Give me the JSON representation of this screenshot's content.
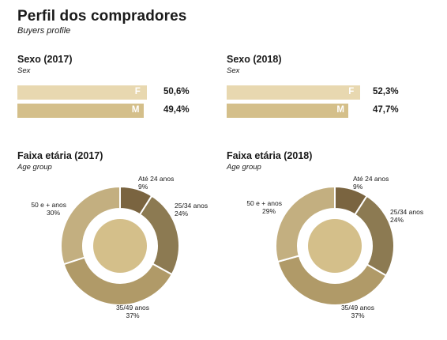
{
  "header": {
    "title": "Perfil dos compradores",
    "subtitle": "Buyers profile"
  },
  "colors": {
    "f_bar": "#e8d8b0",
    "m_bar": "#d4bf8a",
    "donut_inner": "#d4bf8a"
  },
  "chart_data": [
    {
      "type": "bar",
      "title": "Sexo (2017)",
      "subtitle": "Sex",
      "categories": [
        "F",
        "M"
      ],
      "values": [
        50.6,
        49.4
      ],
      "value_labels": [
        "50,6%",
        "49,4%"
      ],
      "unit": "%"
    },
    {
      "type": "bar",
      "title": "Sexo (2018)",
      "subtitle": "Sex",
      "categories": [
        "F",
        "M"
      ],
      "values": [
        52.3,
        47.7
      ],
      "value_labels": [
        "52,3%",
        "47,7%"
      ],
      "unit": "%"
    },
    {
      "type": "pie",
      "title": "Faixa etária (2017)",
      "subtitle": "Age group",
      "categories": [
        "Até 24 anos",
        "25/34 anos",
        "35/49 anos",
        "50 e + anos"
      ],
      "values": [
        9,
        24,
        37,
        30
      ],
      "value_labels": [
        "9%",
        "24%",
        "37%",
        "30%"
      ],
      "colors": [
        "#7a6440",
        "#8c7a52",
        "#b09a68",
        "#c3af80"
      ]
    },
    {
      "type": "pie",
      "title": "Faixa etária (2018)",
      "subtitle": "Age group",
      "categories": [
        "Até 24 anos",
        "25/34 anos",
        "35/49 anos",
        "50 e + anos"
      ],
      "values": [
        9,
        24,
        37,
        29
      ],
      "value_labels": [
        "9%",
        "24%",
        "37%",
        "29%"
      ],
      "colors": [
        "#7a6440",
        "#8c7a52",
        "#b09a68",
        "#c3af80"
      ]
    }
  ]
}
